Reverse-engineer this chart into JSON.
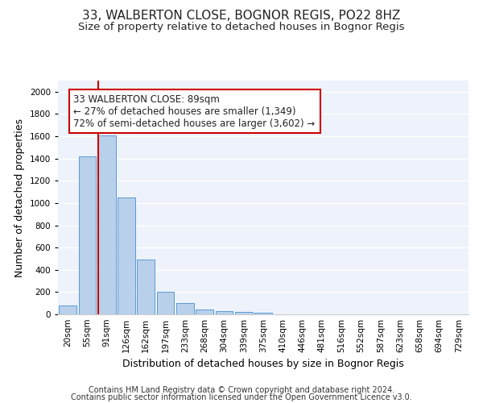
{
  "title": "33, WALBERTON CLOSE, BOGNOR REGIS, PO22 8HZ",
  "subtitle": "Size of property relative to detached houses in Bognor Regis",
  "xlabel": "Distribution of detached houses by size in Bognor Regis",
  "ylabel": "Number of detached properties",
  "categories": [
    "20sqm",
    "55sqm",
    "91sqm",
    "126sqm",
    "162sqm",
    "197sqm",
    "233sqm",
    "268sqm",
    "304sqm",
    "339sqm",
    "375sqm",
    "410sqm",
    "446sqm",
    "481sqm",
    "516sqm",
    "552sqm",
    "587sqm",
    "623sqm",
    "658sqm",
    "694sqm",
    "729sqm"
  ],
  "values": [
    80,
    1420,
    1610,
    1050,
    490,
    205,
    105,
    40,
    28,
    22,
    18,
    0,
    0,
    0,
    0,
    0,
    0,
    0,
    0,
    0,
    0
  ],
  "bar_color": "#b8d0ea",
  "bar_edge_color": "#5b9bd5",
  "background_color": "#edf2fb",
  "grid_color": "#ffffff",
  "vline_index": 2,
  "vline_color": "#cc0000",
  "annotation_line1": "33 WALBERTON CLOSE: 89sqm",
  "annotation_line2": "← 27% of detached houses are smaller (1,349)",
  "annotation_line3": "72% of semi-detached houses are larger (3,602) →",
  "annotation_box_color": "#ffffff",
  "annotation_box_edge": "#cc0000",
  "ylim": [
    0,
    2100
  ],
  "yticks": [
    0,
    200,
    400,
    600,
    800,
    1000,
    1200,
    1400,
    1600,
    1800,
    2000
  ],
  "footnote_line1": "Contains HM Land Registry data © Crown copyright and database right 2024.",
  "footnote_line2": "Contains public sector information licensed under the Open Government Licence v3.0.",
  "title_fontsize": 11,
  "subtitle_fontsize": 9.5,
  "xlabel_fontsize": 9,
  "ylabel_fontsize": 9,
  "tick_fontsize": 7.5,
  "annot_fontsize": 8.5,
  "footnote_fontsize": 7
}
